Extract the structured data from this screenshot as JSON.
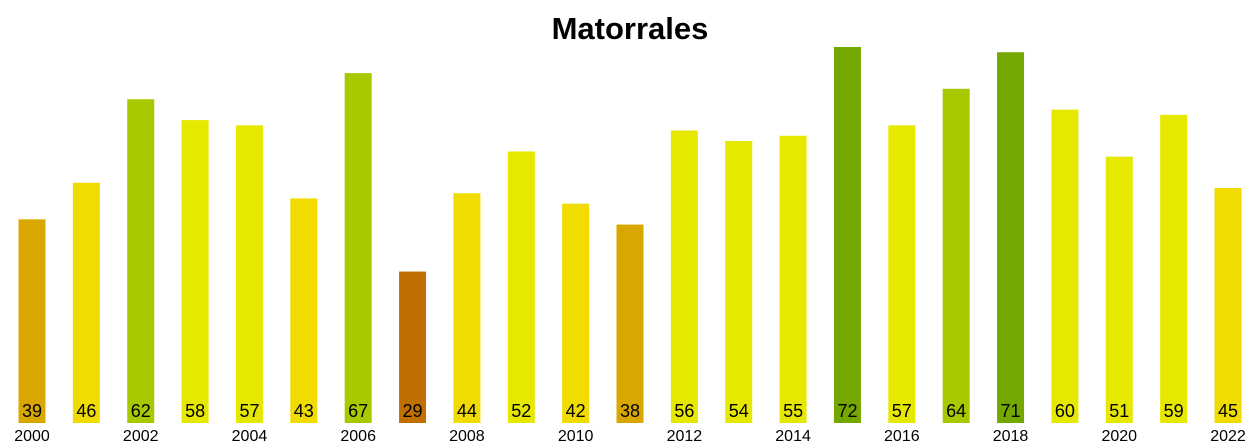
{
  "chart_data": {
    "type": "bar",
    "title": "Matorrales",
    "categories": [
      "2000",
      null,
      "2002",
      null,
      "2004",
      null,
      "2006",
      null,
      "2008",
      null,
      "2010",
      null,
      "2012",
      null,
      "2014",
      null,
      "2016",
      null,
      "2018",
      null,
      "2020",
      null,
      "2022"
    ],
    "values": [
      39,
      46,
      62,
      58,
      57,
      43,
      67,
      29,
      44,
      52,
      42,
      38,
      56,
      54,
      55,
      72,
      57,
      64,
      71,
      60,
      51,
      59,
      45
    ],
    "colors": [
      "#d9a800",
      "#f0dc00",
      "#a8c800",
      "#e6e800",
      "#e6e800",
      "#f0dc00",
      "#a8c800",
      "#c07000",
      "#f0dc00",
      "#e6e800",
      "#f0dc00",
      "#d9a800",
      "#e6e800",
      "#e6e800",
      "#e6e800",
      "#74a800",
      "#e6e800",
      "#a8c800",
      "#74a800",
      "#e6e800",
      "#e6e800",
      "#e6e800",
      "#f0dc00"
    ]
  }
}
